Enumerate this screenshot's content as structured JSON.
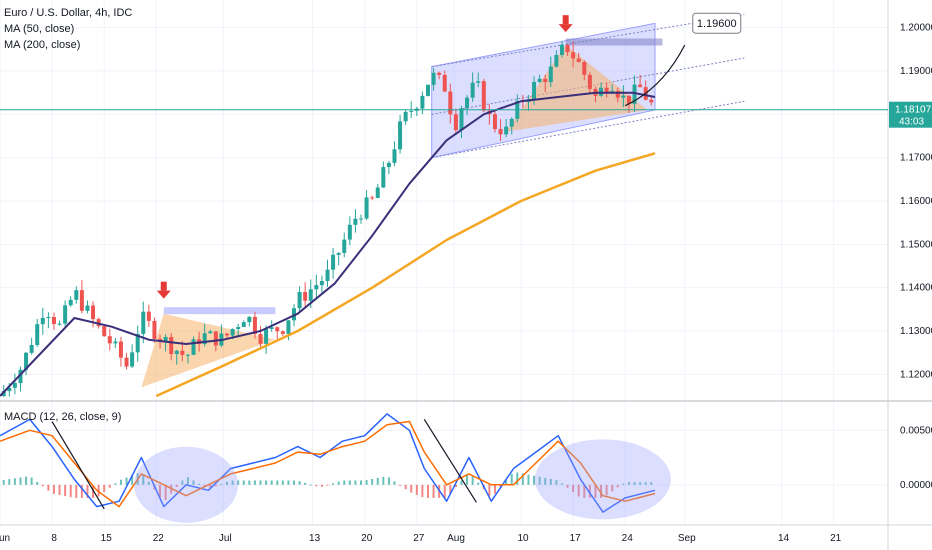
{
  "legend": {
    "title": "Euro / U.S. Dollar, 4h, IDC",
    "ma50": "MA (50, close)",
    "ma200": "MA (200, close)",
    "macd": "MACD (12, 26, close, 9)"
  },
  "price_badge": {
    "value": "1.18107",
    "countdown": "43:03"
  },
  "target_label": "1.19600",
  "colors": {
    "ma50": "#3b2f7a",
    "ma200": "#f5a623",
    "up": "#26a69a",
    "down": "#ef5350",
    "channel": "#9aa0ff",
    "triangle": "#f6b26b",
    "macd_line": "#2962ff",
    "signal_line": "#ff6d00",
    "price_line": "#26a69a",
    "arrow_marker": "#e53935"
  },
  "chart_data": [
    {
      "type": "line",
      "title": "Euro / U.S. Dollar, 4h, IDC",
      "x_ticks": [
        "Jun",
        "8",
        "15",
        "22",
        "Jul",
        "13",
        "20",
        "27",
        "Aug",
        "10",
        "17",
        "24",
        "Sep",
        "14",
        "21"
      ],
      "y_ticks": [
        "1.20000",
        "1.19000",
        "1.18000",
        "1.17000",
        "1.16000",
        "1.15000",
        "1.14000",
        "1.13000",
        "1.12000"
      ],
      "ylim": [
        1.115,
        1.205
      ],
      "series": [
        {
          "name": "MA (50, close)",
          "x": [
            0,
            5,
            10,
            15,
            20,
            25,
            30,
            35,
            40,
            45,
            50,
            55,
            60,
            65,
            70,
            75,
            80,
            85,
            88
          ],
          "values": [
            1.115,
            1.124,
            1.133,
            1.131,
            1.128,
            1.127,
            1.128,
            1.13,
            1.134,
            1.141,
            1.152,
            1.164,
            1.174,
            1.18,
            1.183,
            1.184,
            1.185,
            1.185,
            1.184
          ]
        },
        {
          "name": "MA (200, close)",
          "x": [
            21,
            30,
            40,
            50,
            60,
            70,
            80,
            88
          ],
          "values": [
            1.115,
            1.122,
            1.13,
            1.14,
            1.151,
            1.16,
            1.167,
            1.171
          ]
        }
      ],
      "price": {
        "x": [
          0,
          3,
          6,
          8,
          10,
          13,
          15,
          17,
          19,
          22,
          25,
          27,
          30,
          33,
          35,
          38,
          40,
          42,
          44,
          46,
          48,
          50,
          52,
          54,
          56,
          58,
          60,
          61,
          62,
          64,
          66,
          68,
          70,
          72,
          74,
          76,
          78,
          80,
          82,
          84,
          86,
          88
        ],
        "values": [
          1.115,
          1.122,
          1.136,
          1.131,
          1.139,
          1.131,
          1.127,
          1.122,
          1.133,
          1.128,
          1.124,
          1.129,
          1.128,
          1.134,
          1.129,
          1.131,
          1.137,
          1.14,
          1.143,
          1.15,
          1.157,
          1.16,
          1.168,
          1.178,
          1.183,
          1.189,
          1.186,
          1.177,
          1.182,
          1.187,
          1.178,
          1.176,
          1.183,
          1.187,
          1.19,
          1.196,
          1.191,
          1.184,
          1.188,
          1.183,
          1.186,
          1.181
        ]
      },
      "last_price": 1.18107,
      "annotations": [
        "1.19600"
      ]
    },
    {
      "type": "line",
      "title": "MACD (12, 26, close, 9)",
      "y_ticks": [
        "0.00500",
        "0.00000"
      ],
      "ylim": [
        -0.0035,
        0.0075
      ],
      "series": [
        {
          "name": "MACD",
          "x": [
            0,
            4,
            7,
            10,
            13,
            16,
            19,
            22,
            25,
            28,
            31,
            34,
            37,
            40,
            43,
            46,
            49,
            52,
            55,
            57,
            60,
            63,
            66,
            69,
            72,
            75,
            78,
            81,
            84,
            88
          ],
          "values": [
            0.0045,
            0.006,
            0.0035,
            0.0005,
            -0.002,
            -0.0015,
            0.0025,
            -0.002,
            0.0,
            -0.0005,
            0.0015,
            0.002,
            0.0025,
            0.0035,
            0.0025,
            0.004,
            0.0045,
            0.0065,
            0.005,
            0.0015,
            -0.0015,
            0.0025,
            -0.0015,
            0.0015,
            0.003,
            0.0045,
            0.0005,
            -0.0025,
            -0.0012,
            -0.0005
          ]
        },
        {
          "name": "Signal",
          "x": [
            0,
            4,
            7,
            10,
            13,
            16,
            19,
            22,
            25,
            28,
            31,
            34,
            37,
            40,
            43,
            46,
            49,
            52,
            55,
            57,
            60,
            63,
            66,
            69,
            72,
            75,
            78,
            81,
            84,
            88
          ],
          "values": [
            0.004,
            0.005,
            0.0045,
            0.002,
            -0.0005,
            -0.002,
            0.001,
            0.0,
            -0.001,
            0.0,
            0.001,
            0.0015,
            0.002,
            0.003,
            0.0028,
            0.0035,
            0.004,
            0.0055,
            0.0058,
            0.003,
            0.0,
            0.001,
            0.0,
            0.0,
            0.002,
            0.004,
            0.002,
            -0.001,
            -0.0015,
            -0.0008
          ]
        }
      ]
    }
  ]
}
